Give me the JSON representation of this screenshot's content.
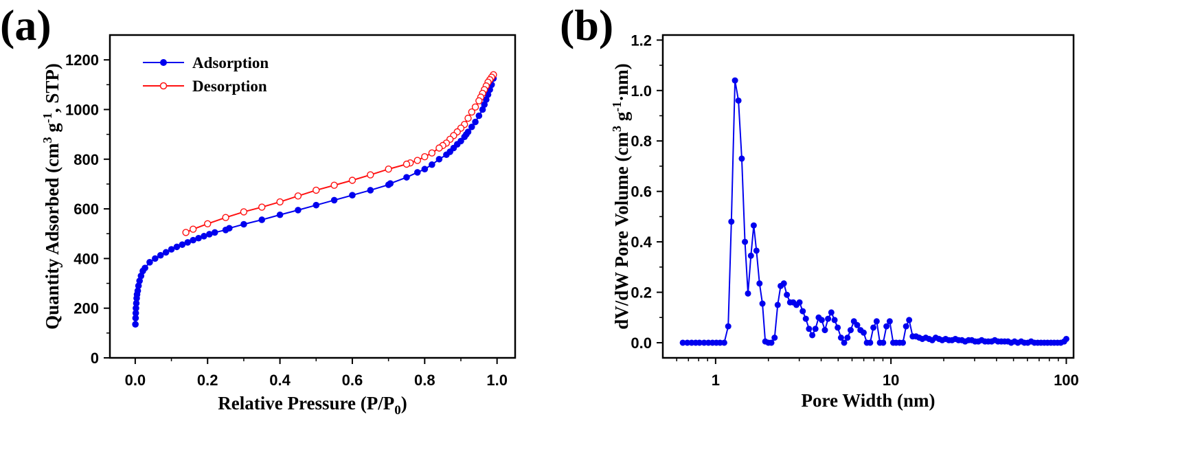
{
  "colors": {
    "adsorption": "#0000ee",
    "desorption": "#ff1010",
    "axis": "#000000",
    "pore": "#0000ee"
  },
  "chart_data": [
    {
      "type": "line",
      "panel_label": "(a)",
      "title": "",
      "xlabel": "Relative Pressure (P/P",
      "xlabel_sub": "0",
      "xlabel_end": ")",
      "ylabel_parts": [
        "Quantity Adsorbed (cm",
        "3",
        " g",
        "-1",
        ", STP)"
      ],
      "xlim": [
        -0.07,
        1.05
      ],
      "ylim": [
        0,
        1300
      ],
      "xticks": [
        0.0,
        0.2,
        0.4,
        0.6,
        0.8,
        1.0
      ],
      "xtick_labels": [
        "0.0",
        "0.2",
        "0.4",
        "0.6",
        "0.8",
        "1.0"
      ],
      "yticks": [
        0,
        200,
        400,
        600,
        800,
        1000,
        1200
      ],
      "ytick_labels": [
        "0",
        "200",
        "400",
        "600",
        "800",
        "1000",
        "1200"
      ],
      "legend": {
        "position": "top-left",
        "entries": [
          "Adsorption",
          "Desorption"
        ]
      },
      "series": [
        {
          "name": "Adsorption",
          "marker": "filled-circle",
          "x": [
            0.0005,
            0.001,
            0.0015,
            0.002,
            0.003,
            0.004,
            0.005,
            0.007,
            0.009,
            0.012,
            0.016,
            0.021,
            0.027,
            0.04,
            0.055,
            0.07,
            0.085,
            0.1,
            0.115,
            0.13,
            0.145,
            0.16,
            0.175,
            0.19,
            0.205,
            0.22,
            0.25,
            0.26,
            0.3,
            0.35,
            0.4,
            0.45,
            0.5,
            0.55,
            0.6,
            0.65,
            0.7,
            0.705,
            0.75,
            0.78,
            0.8,
            0.82,
            0.84,
            0.86,
            0.87,
            0.88,
            0.89,
            0.9,
            0.91,
            0.915,
            0.92,
            0.93,
            0.94,
            0.95,
            0.96,
            0.965,
            0.97,
            0.975,
            0.98,
            0.985,
            0.99
          ],
          "y": [
            135,
            160,
            180,
            200,
            220,
            240,
            255,
            270,
            290,
            310,
            330,
            350,
            362,
            385,
            400,
            413,
            425,
            437,
            447,
            456,
            465,
            474,
            482,
            490,
            498,
            505,
            515,
            522,
            538,
            556,
            576,
            595,
            615,
            635,
            655,
            675,
            697,
            702,
            727,
            747,
            760,
            778,
            800,
            818,
            830,
            845,
            860,
            873,
            890,
            900,
            910,
            930,
            950,
            975,
            1000,
            1020,
            1040,
            1060,
            1080,
            1100,
            1125
          ]
        },
        {
          "name": "Desorption",
          "marker": "open-circle",
          "x": [
            0.99,
            0.985,
            0.98,
            0.975,
            0.97,
            0.965,
            0.96,
            0.955,
            0.95,
            0.94,
            0.93,
            0.92,
            0.91,
            0.9,
            0.89,
            0.88,
            0.87,
            0.86,
            0.85,
            0.84,
            0.82,
            0.8,
            0.78,
            0.76,
            0.75,
            0.7,
            0.65,
            0.6,
            0.55,
            0.5,
            0.45,
            0.4,
            0.35,
            0.3,
            0.25,
            0.2,
            0.16,
            0.14
          ],
          "y": [
            1140,
            1130,
            1120,
            1110,
            1095,
            1080,
            1065,
            1050,
            1035,
            1010,
            990,
            965,
            940,
            925,
            910,
            895,
            880,
            865,
            855,
            845,
            825,
            810,
            795,
            785,
            780,
            760,
            737,
            715,
            695,
            675,
            652,
            628,
            607,
            588,
            565,
            540,
            518,
            505
          ]
        }
      ]
    },
    {
      "type": "line",
      "panel_label": "(b)",
      "title": "",
      "xlabel": "Pore Width (nm)",
      "xscale": "log",
      "ylabel_parts": [
        "dV/dW Pore Volume (cm",
        "3",
        " g",
        "-1",
        "·nm)"
      ],
      "xlim": [
        0.5,
        110
      ],
      "ylim": [
        -0.06,
        1.22
      ],
      "xticks": [
        1,
        10,
        100
      ],
      "xtick_labels": [
        "1",
        "10",
        "100"
      ],
      "yticks": [
        0.0,
        0.2,
        0.4,
        0.6,
        0.8,
        1.0,
        1.2
      ],
      "ytick_labels": [
        "0.0",
        "0.2",
        "0.4",
        "0.6",
        "0.8",
        "1.0",
        "1.2"
      ],
      "series": [
        {
          "name": "dV/dW",
          "marker": "filled-circle",
          "x": [
            0.65,
            0.69,
            0.73,
            0.77,
            0.81,
            0.86,
            0.91,
            0.96,
            1.01,
            1.06,
            1.12,
            1.18,
            1.23,
            1.29,
            1.35,
            1.41,
            1.47,
            1.53,
            1.59,
            1.65,
            1.71,
            1.78,
            1.85,
            1.92,
            2.0,
            2.08,
            2.17,
            2.26,
            2.35,
            2.45,
            2.55,
            2.66,
            2.77,
            2.89,
            3.01,
            3.14,
            3.27,
            3.41,
            3.56,
            3.71,
            3.87,
            4.03,
            4.2,
            4.38,
            4.57,
            4.77,
            4.97,
            5.19,
            5.41,
            5.65,
            5.89,
            6.15,
            6.42,
            6.7,
            6.99,
            7.29,
            7.61,
            7.94,
            8.29,
            8.65,
            9.03,
            9.43,
            9.84,
            10.3,
            10.7,
            11.2,
            11.7,
            12.2,
            12.7,
            13.3,
            13.9,
            14.5,
            15.1,
            15.8,
            16.5,
            17.2,
            18.0,
            18.8,
            19.6,
            20.5,
            21.4,
            22.3,
            23.3,
            24.3,
            25.4,
            26.5,
            27.7,
            28.9,
            30.2,
            31.5,
            32.9,
            34.4,
            35.9,
            37.5,
            39.1,
            40.8,
            42.6,
            44.5,
            46.5,
            48.5,
            50.7,
            52.9,
            55.3,
            57.7,
            60.3,
            63.0,
            65.8,
            68.7,
            71.7,
            74.9,
            78.2,
            81.7,
            85.3,
            89.1,
            93.0,
            97.2,
            100.0
          ],
          "y": [
            0,
            0,
            0,
            0,
            0,
            0,
            0,
            0,
            0,
            0,
            0,
            0.065,
            0.48,
            1.04,
            0.96,
            0.73,
            0.4,
            0.195,
            0.345,
            0.465,
            0.365,
            0.235,
            0.155,
            0.005,
            0,
            0,
            0.02,
            0.15,
            0.225,
            0.235,
            0.19,
            0.16,
            0.16,
            0.15,
            0.16,
            0.125,
            0.095,
            0.055,
            0.03,
            0.055,
            0.1,
            0.09,
            0.05,
            0.095,
            0.12,
            0.09,
            0.06,
            0.02,
            0,
            0.02,
            0.05,
            0.085,
            0.07,
            0.05,
            0.04,
            0,
            0,
            0.06,
            0.085,
            0,
            0,
            0.065,
            0.085,
            0,
            0,
            0,
            0,
            0.065,
            0.09,
            0.025,
            0.025,
            0.02,
            0.015,
            0.02,
            0.015,
            0.01,
            0.02,
            0.015,
            0.01,
            0.015,
            0.01,
            0.01,
            0.015,
            0.01,
            0.01,
            0.005,
            0.01,
            0.01,
            0.005,
            0.005,
            0.01,
            0.005,
            0.005,
            0.005,
            0.01,
            0.005,
            0.005,
            0.005,
            0.005,
            0,
            0.005,
            0,
            0.005,
            0,
            0,
            0.005,
            0,
            0,
            0,
            0,
            0,
            0,
            0,
            0,
            0,
            0.005,
            0.015
          ]
        }
      ]
    }
  ]
}
